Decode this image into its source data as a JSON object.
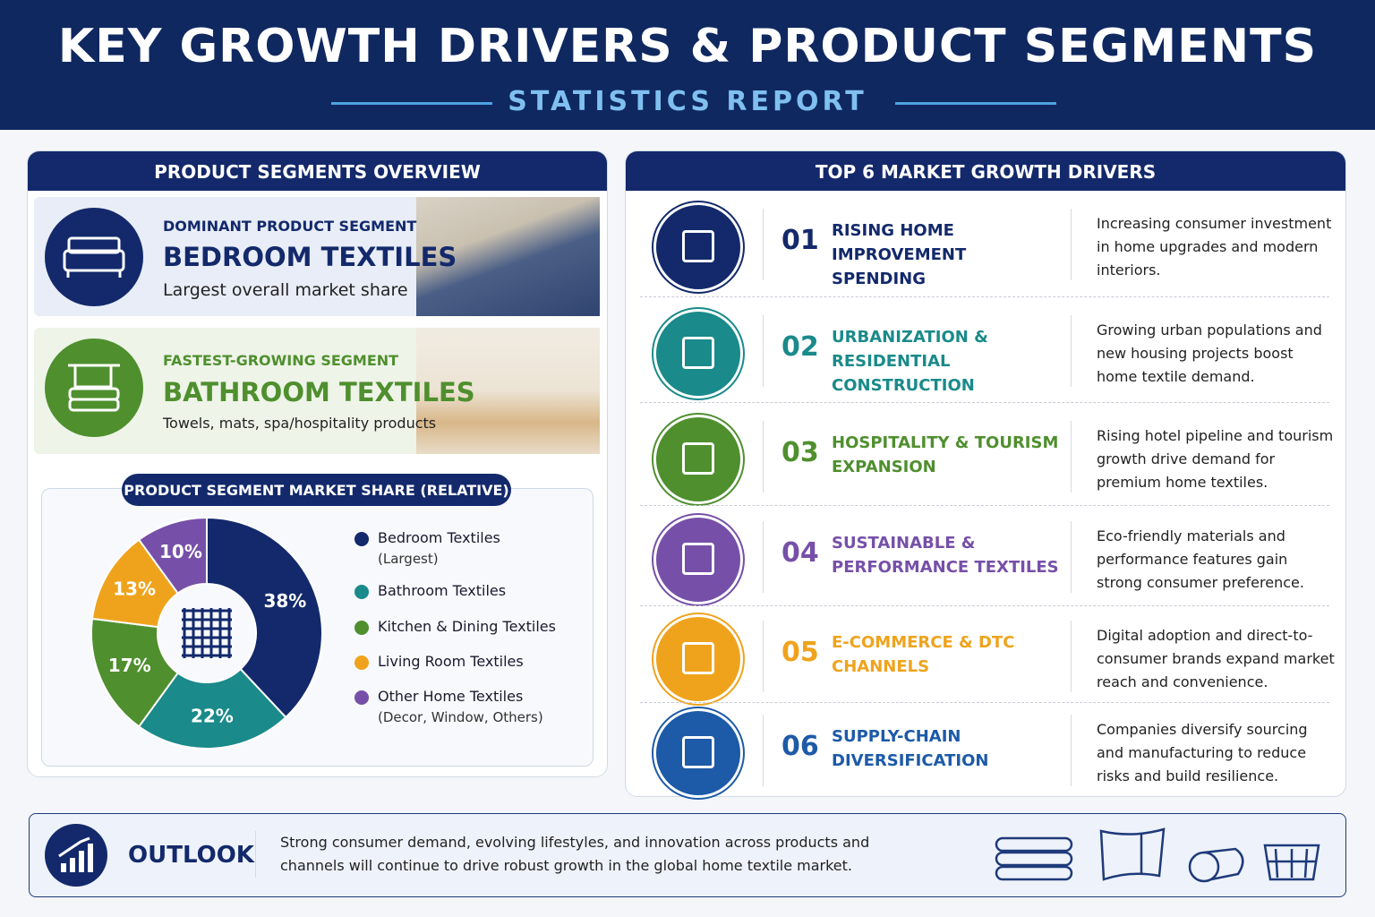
{
  "header": {
    "title": "KEY GROWTH DRIVERS & PRODUCT SEGMENTS",
    "subtitle": "STATISTICS REPORT"
  },
  "segments_panel": {
    "title": "PRODUCT SEGMENTS OVERVIEW",
    "cards": [
      {
        "kicker": "DOMINANT PRODUCT SEGMENT",
        "name": "BEDROOM TEXTILES",
        "note": "Largest overall market share"
      },
      {
        "kicker": "FASTEST-GROWING SEGMENT",
        "name": "BATHROOM TEXTILES",
        "note": "Towels, mats, spa/hospitality products"
      }
    ]
  },
  "chart_data": {
    "type": "pie",
    "title": "PRODUCT SEGMENT MARKET SHARE (RELATIVE)",
    "categories": [
      "Bedroom Textiles",
      "Bathroom Textiles",
      "Kitchen & Dining Textiles",
      "Living Room Textiles",
      "Other Home Textiles"
    ],
    "category_notes": [
      "(Largest)",
      null,
      null,
      null,
      "(Decor, Window, Others)"
    ],
    "values": [
      38,
      22,
      17,
      13,
      10
    ],
    "value_labels": [
      "38%",
      "22%",
      "17%",
      "13%",
      "10%"
    ],
    "colors": [
      "#13296b",
      "#1a8a8a",
      "#4f8f2e",
      "#efa31d",
      "#7650a8"
    ],
    "donut": true
  },
  "drivers_panel": {
    "title": "TOP 6 MARKET GROWTH DRIVERS",
    "drivers": [
      {
        "number": "01",
        "title": "RISING HOME IMPROVEMENT SPENDING",
        "description": "Increasing consumer investment in home upgrades and modern interiors."
      },
      {
        "number": "02",
        "title": "URBANIZATION & RESIDENTIAL CONSTRUCTION",
        "description": "Growing urban populations and new housing projects boost home textile demand."
      },
      {
        "number": "03",
        "title": "HOSPITALITY & TOURISM EXPANSION",
        "description": "Rising hotel pipeline and tourism growth drive demand for premium home textiles."
      },
      {
        "number": "04",
        "title": "SUSTAINABLE & PERFORMANCE TEXTILES",
        "description": "Eco-friendly materials and performance features gain strong consumer preference."
      },
      {
        "number": "05",
        "title": "E-COMMERCE & DTC CHANNELS",
        "description": "Digital adoption and direct-to-consumer brands expand market reach and convenience."
      },
      {
        "number": "06",
        "title": "SUPPLY-CHAIN DIVERSIFICATION",
        "description": "Companies diversify sourcing and manufacturing to reduce risks and build resilience."
      }
    ]
  },
  "outlook": {
    "title": "OUTLOOK",
    "text": "Strong consumer demand, evolving lifestyles, and innovation across products and channels will continue to drive robust growth in the global home textile market."
  }
}
